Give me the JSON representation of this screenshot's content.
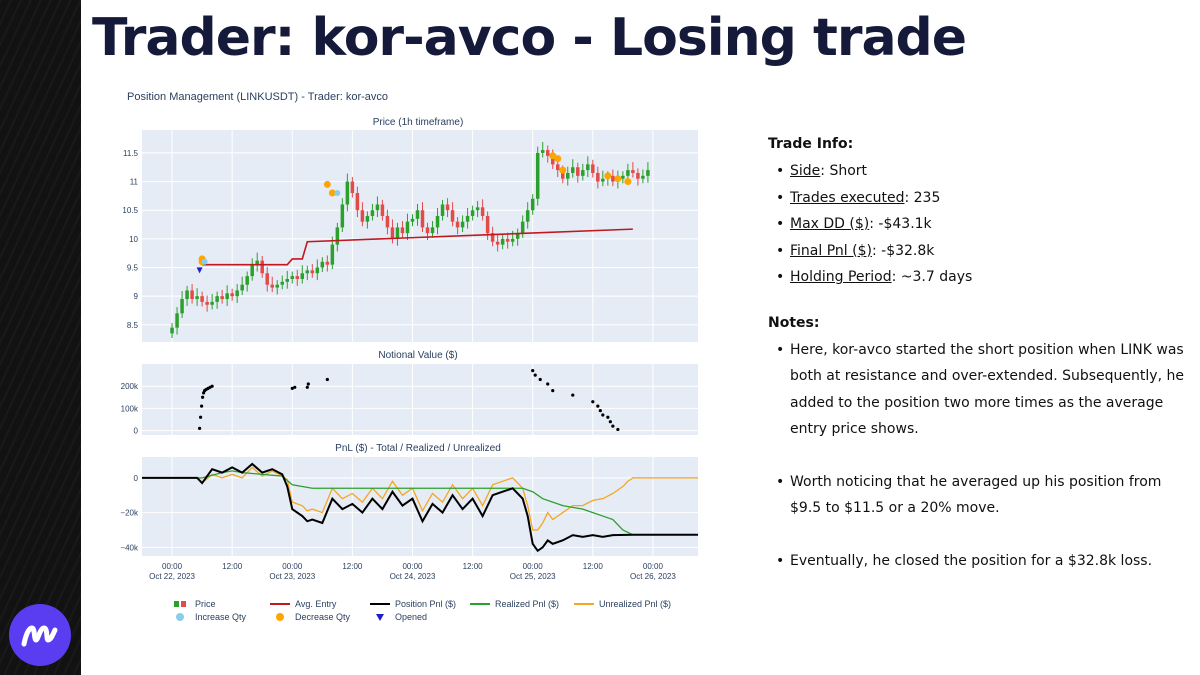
{
  "page": {
    "title": "Trader: kor-avco - Losing trade"
  },
  "figure": {
    "title": "Position Management (LINKUSDT) - Trader: kor-avco",
    "panel_titles": [
      "Price (1h timeframe)",
      "Notional Value ($)",
      "PnL ($) - Total / Realized / Unrealized"
    ]
  },
  "legend": {
    "price": "Price",
    "avg_entry": "Avg. Entry",
    "position_pnl": "Position Pnl ($)",
    "realized_pnl": "Realized Pnl ($)",
    "unrealized_pnl": "Unrealized Pnl ($)",
    "increase_qty": "Increase Qty",
    "decrease_qty": "Decrease Qty",
    "opened": "Opened"
  },
  "trade_info": {
    "heading": "Trade Info:",
    "items": [
      {
        "key": "Side",
        "value": ": Short"
      },
      {
        "key": "Trades executed",
        "value": ": 235"
      },
      {
        "key": "Max DD ($)",
        "value": ": -$43.1k"
      },
      {
        "key": "Final Pnl ($)",
        "value": ": -$32.8k"
      },
      {
        "key": "Holding Period",
        "value": ": ~3.7 days"
      }
    ]
  },
  "notes": {
    "heading": "Notes:",
    "items": [
      "Here, kor-avco started the short position when LINK was both at resistance and over-extended. Subsequently, he added to the position two more times as the average entry price shows.",
      "Worth noticing that he averaged up his position from $9.5 to $11.5 or a 20% move.",
      "Eventually, he closed the position for a $32.8k loss."
    ]
  },
  "colors": {
    "title": "#151a3a",
    "plot_bg": "#e5ecf6",
    "up": "#2ca02c",
    "down": "#e34a4a",
    "avg_entry": "#c0181e",
    "position_pnl": "#000000",
    "realized_pnl": "#2ca02c",
    "unrealized_pnl": "#f5a623",
    "increase": "#87ceeb",
    "decrease": "#ffa500",
    "opened": "#1f1fd0",
    "logo": "#5a3df0"
  },
  "chart_data": [
    {
      "type": "candlestick",
      "title": "Price (1h timeframe)",
      "x_ticks": [
        "00:00\nOct 22, 2023",
        "12:00",
        "00:00\nOct 23, 2023",
        "12:00",
        "00:00\nOct 24, 2023",
        "12:00",
        "00:00\nOct 25, 2023",
        "12:00",
        "00:00\nOct 26, 2023"
      ],
      "x_tick_hours": [
        0,
        12,
        24,
        36,
        48,
        60,
        72,
        84,
        96
      ],
      "xlim_hours": [
        -6,
        105
      ],
      "y_ticks": [
        8.5,
        9,
        9.5,
        10,
        10.5,
        11,
        11.5
      ],
      "ylim": [
        8.2,
        11.9
      ],
      "close_series": [
        8.45,
        8.7,
        8.95,
        9.1,
        8.95,
        9.0,
        8.9,
        8.85,
        8.9,
        9.0,
        8.95,
        9.05,
        9.0,
        9.1,
        9.2,
        9.35,
        9.55,
        9.62,
        9.4,
        9.2,
        9.15,
        9.2,
        9.25,
        9.3,
        9.35,
        9.3,
        9.4,
        9.45,
        9.4,
        9.5,
        9.6,
        9.55,
        9.9,
        10.2,
        10.6,
        11.0,
        10.8,
        10.5,
        10.3,
        10.4,
        10.5,
        10.6,
        10.4,
        10.2,
        10.0,
        10.2,
        10.1,
        10.3,
        10.35,
        10.5,
        10.2,
        10.1,
        10.2,
        10.4,
        10.6,
        10.5,
        10.3,
        10.2,
        10.3,
        10.4,
        10.5,
        10.55,
        10.4,
        10.1,
        9.95,
        9.9,
        10.0,
        9.95,
        10.0,
        10.1,
        10.3,
        10.5,
        10.7,
        11.5,
        11.55,
        11.45,
        11.3,
        11.2,
        11.05,
        11.15,
        11.25,
        11.1,
        11.2,
        11.3,
        11.15,
        11.0,
        11.05,
        11.1,
        11.0,
        11.05,
        11.1,
        11.2,
        11.15,
        11.05,
        11.1,
        11.2
      ],
      "avg_entry": {
        "x_hours": [
          6,
          18,
          19,
          23,
          24,
          26,
          27,
          92
        ],
        "y": [
          9.55,
          9.55,
          9.55,
          9.55,
          9.65,
          9.65,
          9.95,
          10.17
        ]
      },
      "decrease_qty_points": [
        {
          "h": 6,
          "y": 9.65
        },
        {
          "h": 6,
          "y": 9.6
        },
        {
          "h": 31,
          "y": 10.95
        },
        {
          "h": 32,
          "y": 10.8
        },
        {
          "h": 76,
          "y": 11.45
        },
        {
          "h": 77,
          "y": 11.4
        },
        {
          "h": 78,
          "y": 11.2
        },
        {
          "h": 87,
          "y": 11.1
        },
        {
          "h": 89,
          "y": 11.05
        },
        {
          "h": 91,
          "y": 11.0
        }
      ],
      "increase_qty_points": [
        {
          "h": 6.5,
          "y": 9.6
        },
        {
          "h": 33,
          "y": 10.8
        }
      ],
      "opened_points": [
        {
          "h": 5.5,
          "y": 9.45
        }
      ]
    },
    {
      "type": "scatter",
      "title": "Notional Value ($)",
      "y_ticks": [
        0,
        100000,
        200000
      ],
      "y_tick_labels": [
        "0",
        "100k",
        "200k"
      ],
      "ylim": [
        -20000,
        300000
      ],
      "points_hours": [
        5.5,
        5.7,
        5.9,
        6.1,
        6.3,
        6.5,
        6.8,
        7.2,
        7.6,
        8.0,
        24.0,
        24.5,
        27.0,
        27.2,
        31.0,
        72.0,
        72.5,
        73.5,
        75.0,
        76.0,
        80.0,
        84.0,
        85.0,
        85.5,
        86.0,
        87.0,
        87.5,
        88.0,
        89.0
      ],
      "points_values": [
        10000,
        60000,
        110000,
        150000,
        170000,
        180000,
        185000,
        190000,
        195000,
        200000,
        190000,
        195000,
        195000,
        210000,
        230000,
        270000,
        250000,
        230000,
        210000,
        180000,
        160000,
        130000,
        110000,
        90000,
        70000,
        60000,
        40000,
        20000,
        5000
      ]
    },
    {
      "type": "line",
      "title": "PnL ($) - Total / Realized / Unrealized",
      "y_ticks": [
        -40000,
        -20000,
        0
      ],
      "y_tick_labels": [
        "−40k",
        "−20k",
        "0"
      ],
      "ylim": [
        -45000,
        12000
      ],
      "series": [
        {
          "name": "Position Pnl ($)",
          "x_hours": [
            -6,
            5,
            6,
            8,
            10,
            12,
            14,
            16,
            18,
            20,
            22,
            23,
            24,
            26,
            27,
            28,
            30,
            32,
            34,
            36,
            38,
            40,
            42,
            44,
            46,
            48,
            50,
            52,
            54,
            56,
            58,
            60,
            62,
            64,
            66,
            68,
            70,
            71,
            72,
            73,
            74,
            75,
            76,
            78,
            80,
            82,
            84,
            86,
            88,
            92,
            105
          ],
          "y": [
            0,
            0,
            -3000,
            5000,
            3000,
            6000,
            3000,
            8000,
            3000,
            5000,
            2000,
            -5000,
            -18000,
            -22000,
            -25000,
            -24000,
            -26000,
            -12000,
            -18000,
            -15000,
            -20000,
            -12000,
            -18000,
            -8000,
            -16000,
            -12000,
            -25000,
            -15000,
            -20000,
            -10000,
            -18000,
            -12000,
            -22000,
            -10000,
            -8000,
            -6000,
            -12000,
            -22000,
            -38000,
            -42000,
            -40000,
            -36000,
            -38000,
            -36000,
            -33000,
            -34000,
            -33000,
            -34000,
            -33000,
            -32800,
            -32800
          ]
        },
        {
          "name": "Realized Pnl ($)",
          "x_hours": [
            -6,
            6,
            10,
            12,
            14,
            18,
            22,
            24,
            28,
            32,
            40,
            50,
            60,
            70,
            72,
            74,
            76,
            78,
            80,
            82,
            84,
            86,
            88,
            90,
            92,
            105
          ],
          "y": [
            0,
            0,
            3000,
            4000,
            3000,
            2000,
            1000,
            -4000,
            -6000,
            -6000,
            -6000,
            -6000,
            -6000,
            -6000,
            -8000,
            -12000,
            -14000,
            -16000,
            -17000,
            -18000,
            -20000,
            -22000,
            -24000,
            -30000,
            -32800,
            -32800
          ]
        },
        {
          "name": "Unrealized Pnl ($)",
          "x_hours": [
            -6,
            5,
            6,
            8,
            10,
            12,
            14,
            16,
            18,
            20,
            22,
            23,
            24,
            26,
            27,
            28,
            30,
            32,
            34,
            36,
            38,
            40,
            42,
            44,
            46,
            48,
            50,
            52,
            54,
            56,
            58,
            60,
            62,
            64,
            66,
            68,
            70,
            71,
            72,
            73,
            74,
            75,
            76,
            78,
            80,
            82,
            84,
            86,
            88,
            90,
            91,
            92,
            105
          ],
          "y": [
            0,
            0,
            -3000,
            2000,
            0,
            2000,
            0,
            6000,
            1000,
            4000,
            1000,
            -1000,
            -14000,
            -16000,
            -19000,
            -18000,
            -20000,
            -6000,
            -12000,
            -9000,
            -14000,
            -6000,
            -12000,
            -2000,
            -10000,
            -6000,
            -19000,
            -9000,
            -14000,
            -4000,
            -12000,
            -6000,
            -16000,
            -4000,
            -2000,
            0,
            -6000,
            -16000,
            -30000,
            -30000,
            -26000,
            -20000,
            -24000,
            -20000,
            -16000,
            -16000,
            -13000,
            -12000,
            -9000,
            -5000,
            -2000,
            0,
            0
          ]
        }
      ]
    }
  ]
}
